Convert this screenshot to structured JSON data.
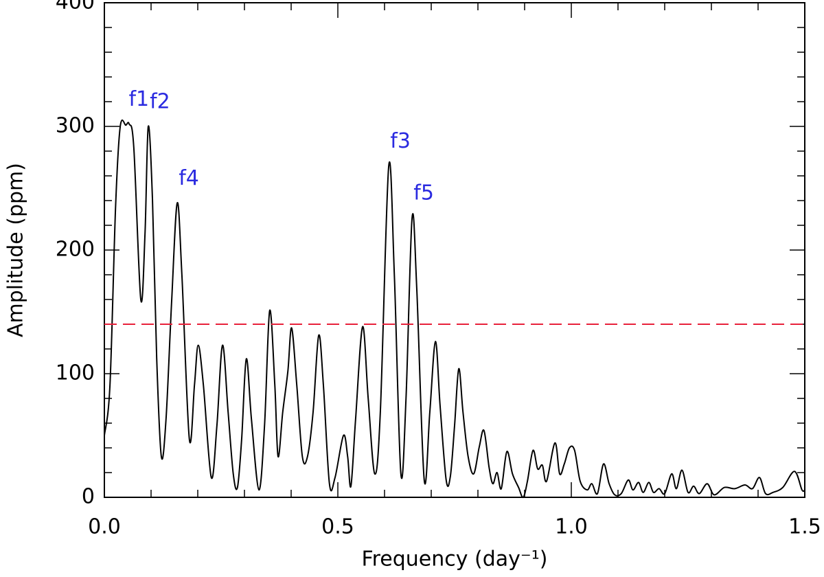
{
  "chart_data": {
    "type": "line",
    "xlabel": "Frequency (day⁻¹)",
    "ylabel": "Amplitude (ppm)",
    "xlim": [
      0,
      1.5
    ],
    "ylim": [
      0,
      400
    ],
    "xticks": [
      {
        "value": 0,
        "label": "0.0"
      },
      0.5,
      {
        "value": 1,
        "label": "1.0"
      },
      1.5
    ],
    "yticks": [
      0,
      100,
      200,
      300,
      400
    ],
    "xminorticks": [
      0.1,
      0.2,
      0.3,
      0.4,
      0.6,
      0.7,
      0.8,
      0.9,
      1.1,
      1.2,
      1.3,
      1.4
    ],
    "yminorticks": [
      20,
      40,
      60,
      80,
      120,
      140,
      160,
      180,
      220,
      240,
      260,
      280,
      320,
      340,
      360,
      380
    ],
    "threshold": {
      "value": 140,
      "color": "#e8203a",
      "dashed": true
    },
    "series": [
      {
        "color": "#000000",
        "x": [
          0,
          0.012,
          0.024,
          0.034,
          0.046,
          0.053,
          0.063,
          0.078,
          0.087,
          0.094,
          0.103,
          0.112,
          0.122,
          0.132,
          0.144,
          0.156,
          0.166,
          0.182,
          0.193,
          0.201,
          0.212,
          0.229,
          0.241,
          0.253,
          0.265,
          0.276,
          0.285,
          0.294,
          0.304,
          0.315,
          0.331,
          0.343,
          0.354,
          0.365,
          0.372,
          0.382,
          0.393,
          0.401,
          0.412,
          0.424,
          0.435,
          0.447,
          0.459,
          0.469,
          0.482,
          0.494,
          0.512,
          0.521,
          0.528,
          0.538,
          0.553,
          0.565,
          0.579,
          0.591,
          0.609,
          0.621,
          0.635,
          0.646,
          0.659,
          0.669,
          0.685,
          0.697,
          0.709,
          0.719,
          0.732,
          0.741,
          0.75,
          0.759,
          0.768,
          0.779,
          0.791,
          0.803,
          0.813,
          0.824,
          0.832,
          0.841,
          0.85,
          0.862,
          0.874,
          0.887,
          0.897,
          0.906,
          0.918,
          0.928,
          0.938,
          0.947,
          0.965,
          0.975,
          0.985,
          0.996,
          1.007,
          1.019,
          1.034,
          1.044,
          1.056,
          1.069,
          1.081,
          1.093,
          1.107,
          1.122,
          1.132,
          1.144,
          1.154,
          1.166,
          1.176,
          1.188,
          1.2,
          1.215,
          1.225,
          1.237,
          1.25,
          1.262,
          1.274,
          1.291,
          1.306,
          1.328,
          1.35,
          1.372,
          1.388,
          1.403,
          1.416,
          1.432,
          1.453,
          1.478,
          1.494,
          1.5
        ],
        "values": [
          50,
          91,
          235,
          300,
          301,
          302,
          283,
          160,
          213,
          300,
          241,
          113,
          33,
          63,
          158,
          238,
          180,
          47,
          91,
          123,
          91,
          16,
          58,
          123,
          69,
          19,
          8,
          47,
          112,
          63,
          6,
          58,
          151,
          91,
          33,
          69,
          102,
          137,
          91,
          33,
          33,
          69,
          131,
          91,
          11,
          16,
          50,
          33,
          9,
          63,
          138,
          80,
          19,
          69,
          268,
          180,
          19,
          80,
          226,
          169,
          14,
          69,
          126,
          74,
          14,
          17,
          58,
          104,
          69,
          33,
          19,
          41,
          54,
          24,
          11,
          20,
          7,
          37,
          19,
          8,
          0,
          13,
          38,
          23,
          26,
          13,
          44,
          19,
          27,
          40,
          38,
          13,
          6,
          11,
          3,
          27,
          11,
          2,
          3,
          14,
          6,
          12,
          4,
          12,
          4,
          7,
          3,
          19,
          7,
          22,
          4,
          9,
          3,
          11,
          2,
          8,
          7,
          10,
          7,
          16,
          3,
          4,
          8,
          21,
          6,
          6
        ]
      }
    ],
    "annotations": [
      {
        "text": "f1",
        "x": 0.049,
        "y": 302
      },
      {
        "text": "f2",
        "x": 0.094,
        "y": 300
      },
      {
        "text": "f4",
        "x": 0.156,
        "y": 238
      },
      {
        "text": "f3",
        "x": 0.609,
        "y": 268
      },
      {
        "text": "f5",
        "x": 0.659,
        "y": 226
      }
    ],
    "annotation_color": "#2a2ae0"
  }
}
